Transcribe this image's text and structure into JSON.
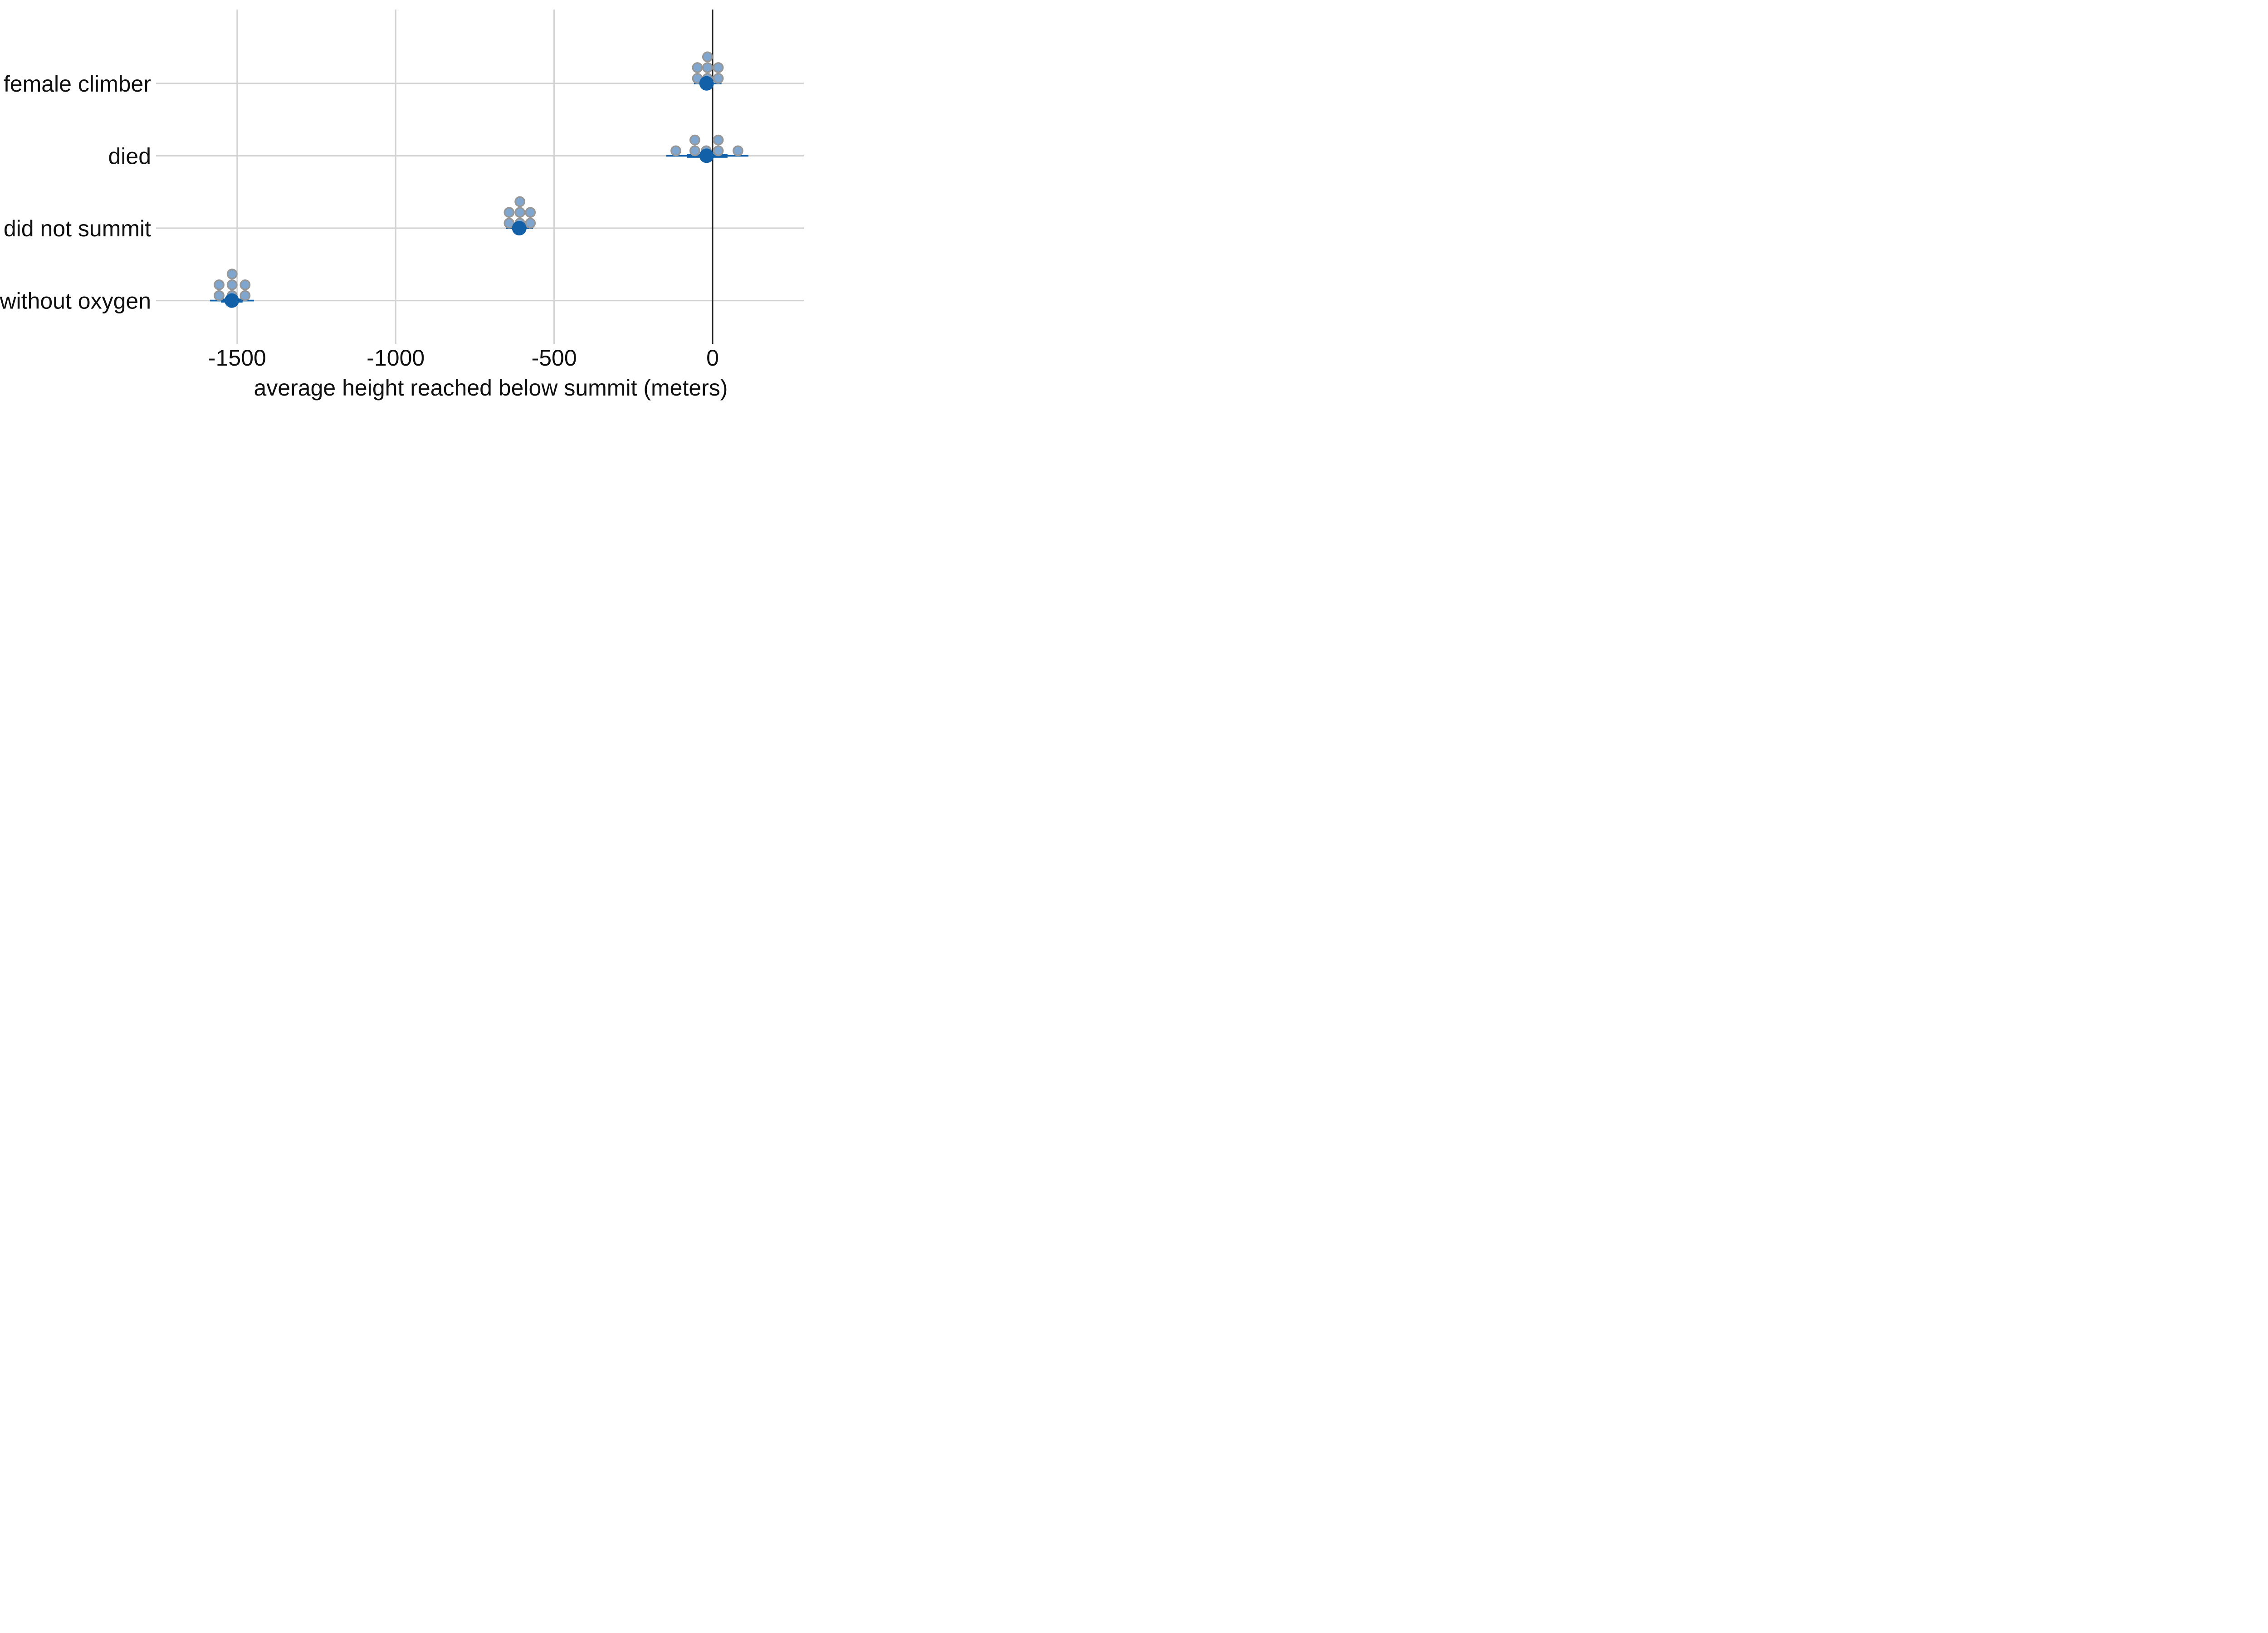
{
  "chart_data": {
    "type": "scatter",
    "subtype": "dot-interval-plot",
    "title": "",
    "xlabel": "average height reached below summit (meters)",
    "ylabel": "",
    "categories": [
      "female climber",
      "died",
      "did not summit",
      "without oxygen"
    ],
    "x_ticks": [
      -1500,
      -1000,
      -500,
      0
    ],
    "x_tick_labels": [
      "-1500",
      "-1000",
      "-500",
      "0"
    ],
    "xlim": [
      -1756,
      288
    ],
    "grid": "on",
    "legend": "none",
    "reference_line_x": 0,
    "rows": [
      {
        "label": "female climber",
        "estimate": -19,
        "ci66": [
          -38,
          2
        ],
        "ci95": [
          -59,
          28
        ],
        "quantile_dot_columns": [
          {
            "x": -48,
            "count": 2
          },
          {
            "x": -16,
            "count": 3
          },
          {
            "x": 18,
            "count": 2
          }
        ]
      },
      {
        "label": "died",
        "estimate": -19,
        "ci66": [
          -81,
          47
        ],
        "ci95": [
          -146,
          113
        ],
        "quantile_dot_columns": [
          {
            "x": -116,
            "count": 1
          },
          {
            "x": -56,
            "count": 2
          },
          {
            "x": -20,
            "count": 1
          },
          {
            "x": 18,
            "count": 2
          },
          {
            "x": 80,
            "count": 1
          }
        ]
      },
      {
        "label": "did not summit",
        "estimate": -610,
        "ci66": [
          -629,
          -591
        ],
        "ci95": [
          -652,
          -567
        ],
        "quantile_dot_columns": [
          {
            "x": -642,
            "count": 2
          },
          {
            "x": -608,
            "count": 3
          },
          {
            "x": -575,
            "count": 2
          }
        ]
      },
      {
        "label": "without oxygen",
        "estimate": -1517,
        "ci66": [
          -1551,
          -1483
        ],
        "ci95": [
          -1586,
          -1447
        ],
        "quantile_dot_columns": [
          {
            "x": -1557,
            "count": 2
          },
          {
            "x": -1516,
            "count": 3
          },
          {
            "x": -1475,
            "count": 2
          }
        ]
      }
    ],
    "colors": {
      "estimate_and_interval": "#1160a8",
      "quantile_dot_fill": "#7ea6ce",
      "quantile_dot_stroke": "#979797",
      "gridline": "#d3d3d3",
      "zero_line": "#242424",
      "text": "#0f0f0f",
      "background": "#ffffff"
    }
  }
}
